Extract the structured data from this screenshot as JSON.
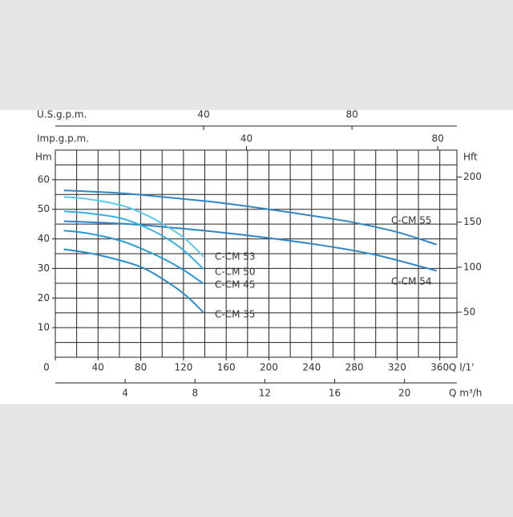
{
  "chart_data": {
    "type": "line",
    "x_label": "Q l/1'",
    "y_label": "Hm",
    "y2_label": "Hft",
    "xlim": [
      0,
      376
    ],
    "xticks": [
      0,
      40,
      80,
      120,
      160,
      200,
      240,
      280,
      320,
      360
    ],
    "ylim": [
      0,
      70
    ],
    "yticks": [
      10,
      20,
      30,
      40,
      50,
      60
    ],
    "y2lim": [
      0,
      230
    ],
    "y2ticks": [
      50,
      100,
      150,
      200
    ],
    "grid": {
      "x_step": 20,
      "y_step": 5
    },
    "top_axes": [
      {
        "label": "U.S.g.p.m.",
        "xlim": [
          0,
          108.3
        ],
        "xticks": [
          40,
          80
        ]
      },
      {
        "label": "Imp.g.p.m.",
        "xlim": [
          0,
          84
        ],
        "xticks": [
          40,
          80
        ]
      }
    ],
    "bottom_axis2": {
      "label": "Q m³/h",
      "xlim": [
        0,
        23
      ],
      "xticks": [
        4,
        8,
        12,
        16,
        20
      ]
    },
    "series": [
      {
        "name": "C-CM 55",
        "color": "#2f86c4",
        "x": [
          8,
          60,
          100,
          150,
          200,
          250,
          280,
          320,
          357
        ],
        "values": [
          56.4,
          55.5,
          54.2,
          52.4,
          50,
          47.3,
          45.5,
          42.3,
          38.1
        ]
      },
      {
        "name": "C-CM 54",
        "color": "#2f86c4",
        "x": [
          8,
          60,
          100,
          150,
          200,
          250,
          300,
          357
        ],
        "values": [
          46,
          45.2,
          44.1,
          42.4,
          40.3,
          37.8,
          34.6,
          29.2
        ]
      },
      {
        "name": "C-CM 53",
        "color": "#5cc8f2",
        "x": [
          8,
          30,
          60,
          80,
          100,
          120,
          139
        ],
        "values": [
          54.2,
          53.5,
          51.5,
          48.9,
          45.2,
          40.5,
          34
        ]
      },
      {
        "name": "C-CM 50",
        "color": "#35b0e6",
        "x": [
          8,
          30,
          60,
          80,
          100,
          120,
          139
        ],
        "values": [
          49.3,
          48.7,
          47.1,
          44.6,
          41.1,
          36.2,
          29.7
        ]
      },
      {
        "name": "C-CM 45",
        "color": "#2798d4",
        "x": [
          8,
          30,
          60,
          80,
          100,
          120,
          139
        ],
        "values": [
          42.8,
          41.9,
          39.5,
          36.8,
          33.5,
          29.5,
          24.8
        ]
      },
      {
        "name": "C-CM 35",
        "color": "#2a8ccd",
        "x": [
          8,
          40,
          80,
          110,
          125,
          139
        ],
        "values": [
          36.5,
          34.6,
          30.5,
          24.2,
          20,
          15
        ]
      }
    ]
  }
}
